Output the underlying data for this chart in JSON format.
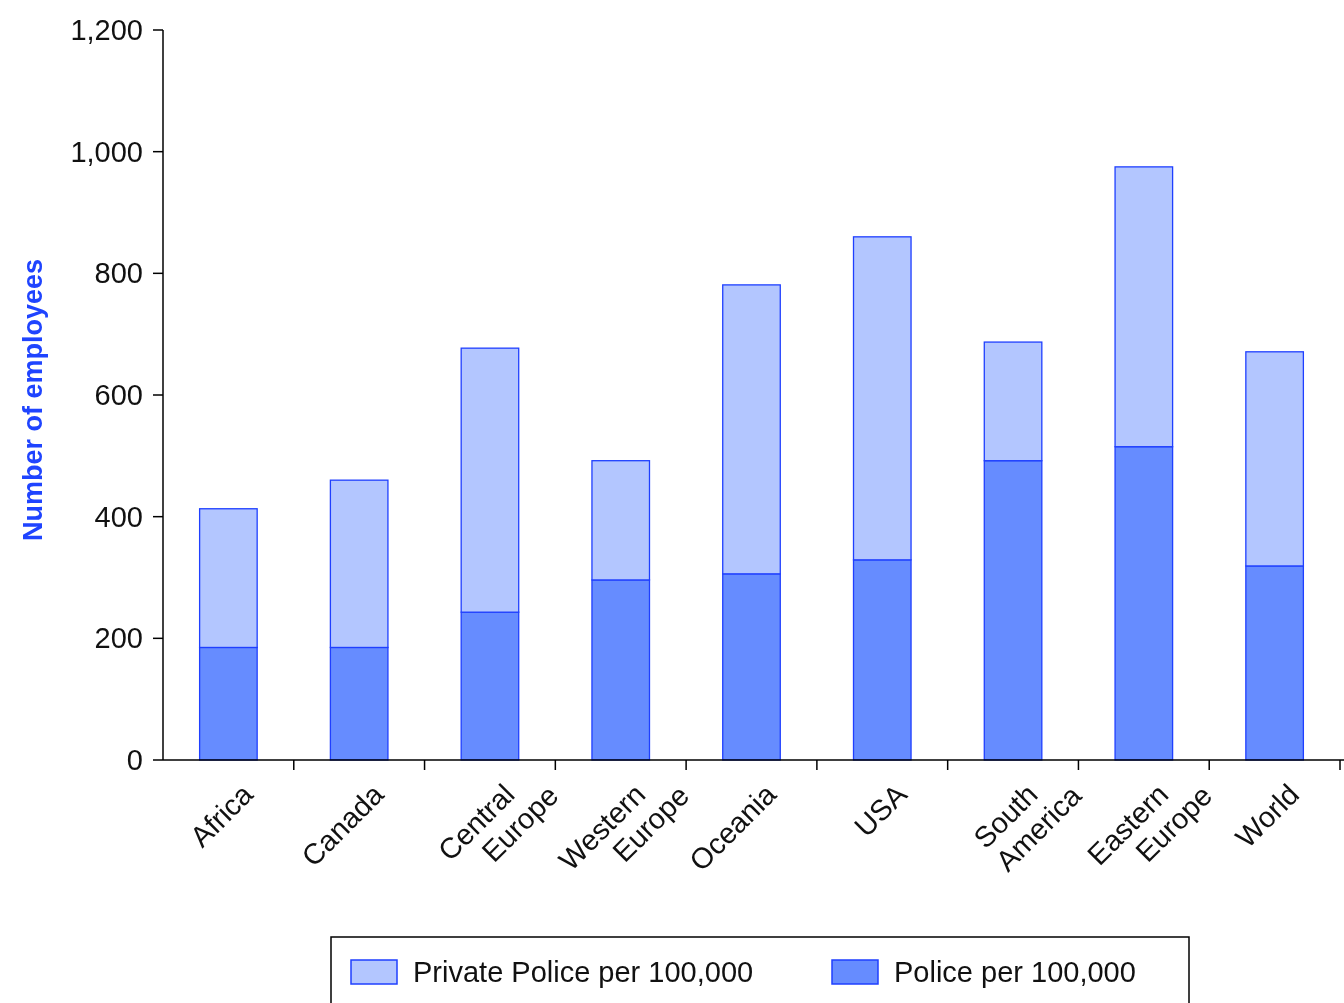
{
  "chart_data": {
    "type": "bar",
    "ylabel": "Number of employees",
    "stacked": true,
    "legend": "bottom",
    "grid": false,
    "categories": [
      "Africa",
      "Canada",
      "Central Europe",
      "Western Europe",
      "Oceania",
      "USA",
      "South America",
      "Eastern Europe",
      "World"
    ],
    "series": [
      {
        "name": "Police per 100,000",
        "color": "#668cff",
        "values": [
          185,
          185,
          243,
          296,
          306,
          329,
          492,
          515,
          319
        ]
      },
      {
        "name": "Private Police per 100,000",
        "color": "#b3c6ff",
        "values": [
          228,
          275,
          434,
          196,
          475,
          531,
          195,
          460,
          352
        ]
      }
    ],
    "ylim": [
      0,
      1200
    ],
    "yticks": [
      0,
      200,
      400,
      600,
      800,
      {
        "value": 1000,
        "label": "1,000"
      },
      {
        "value": 1200,
        "label": "1,200"
      }
    ]
  }
}
